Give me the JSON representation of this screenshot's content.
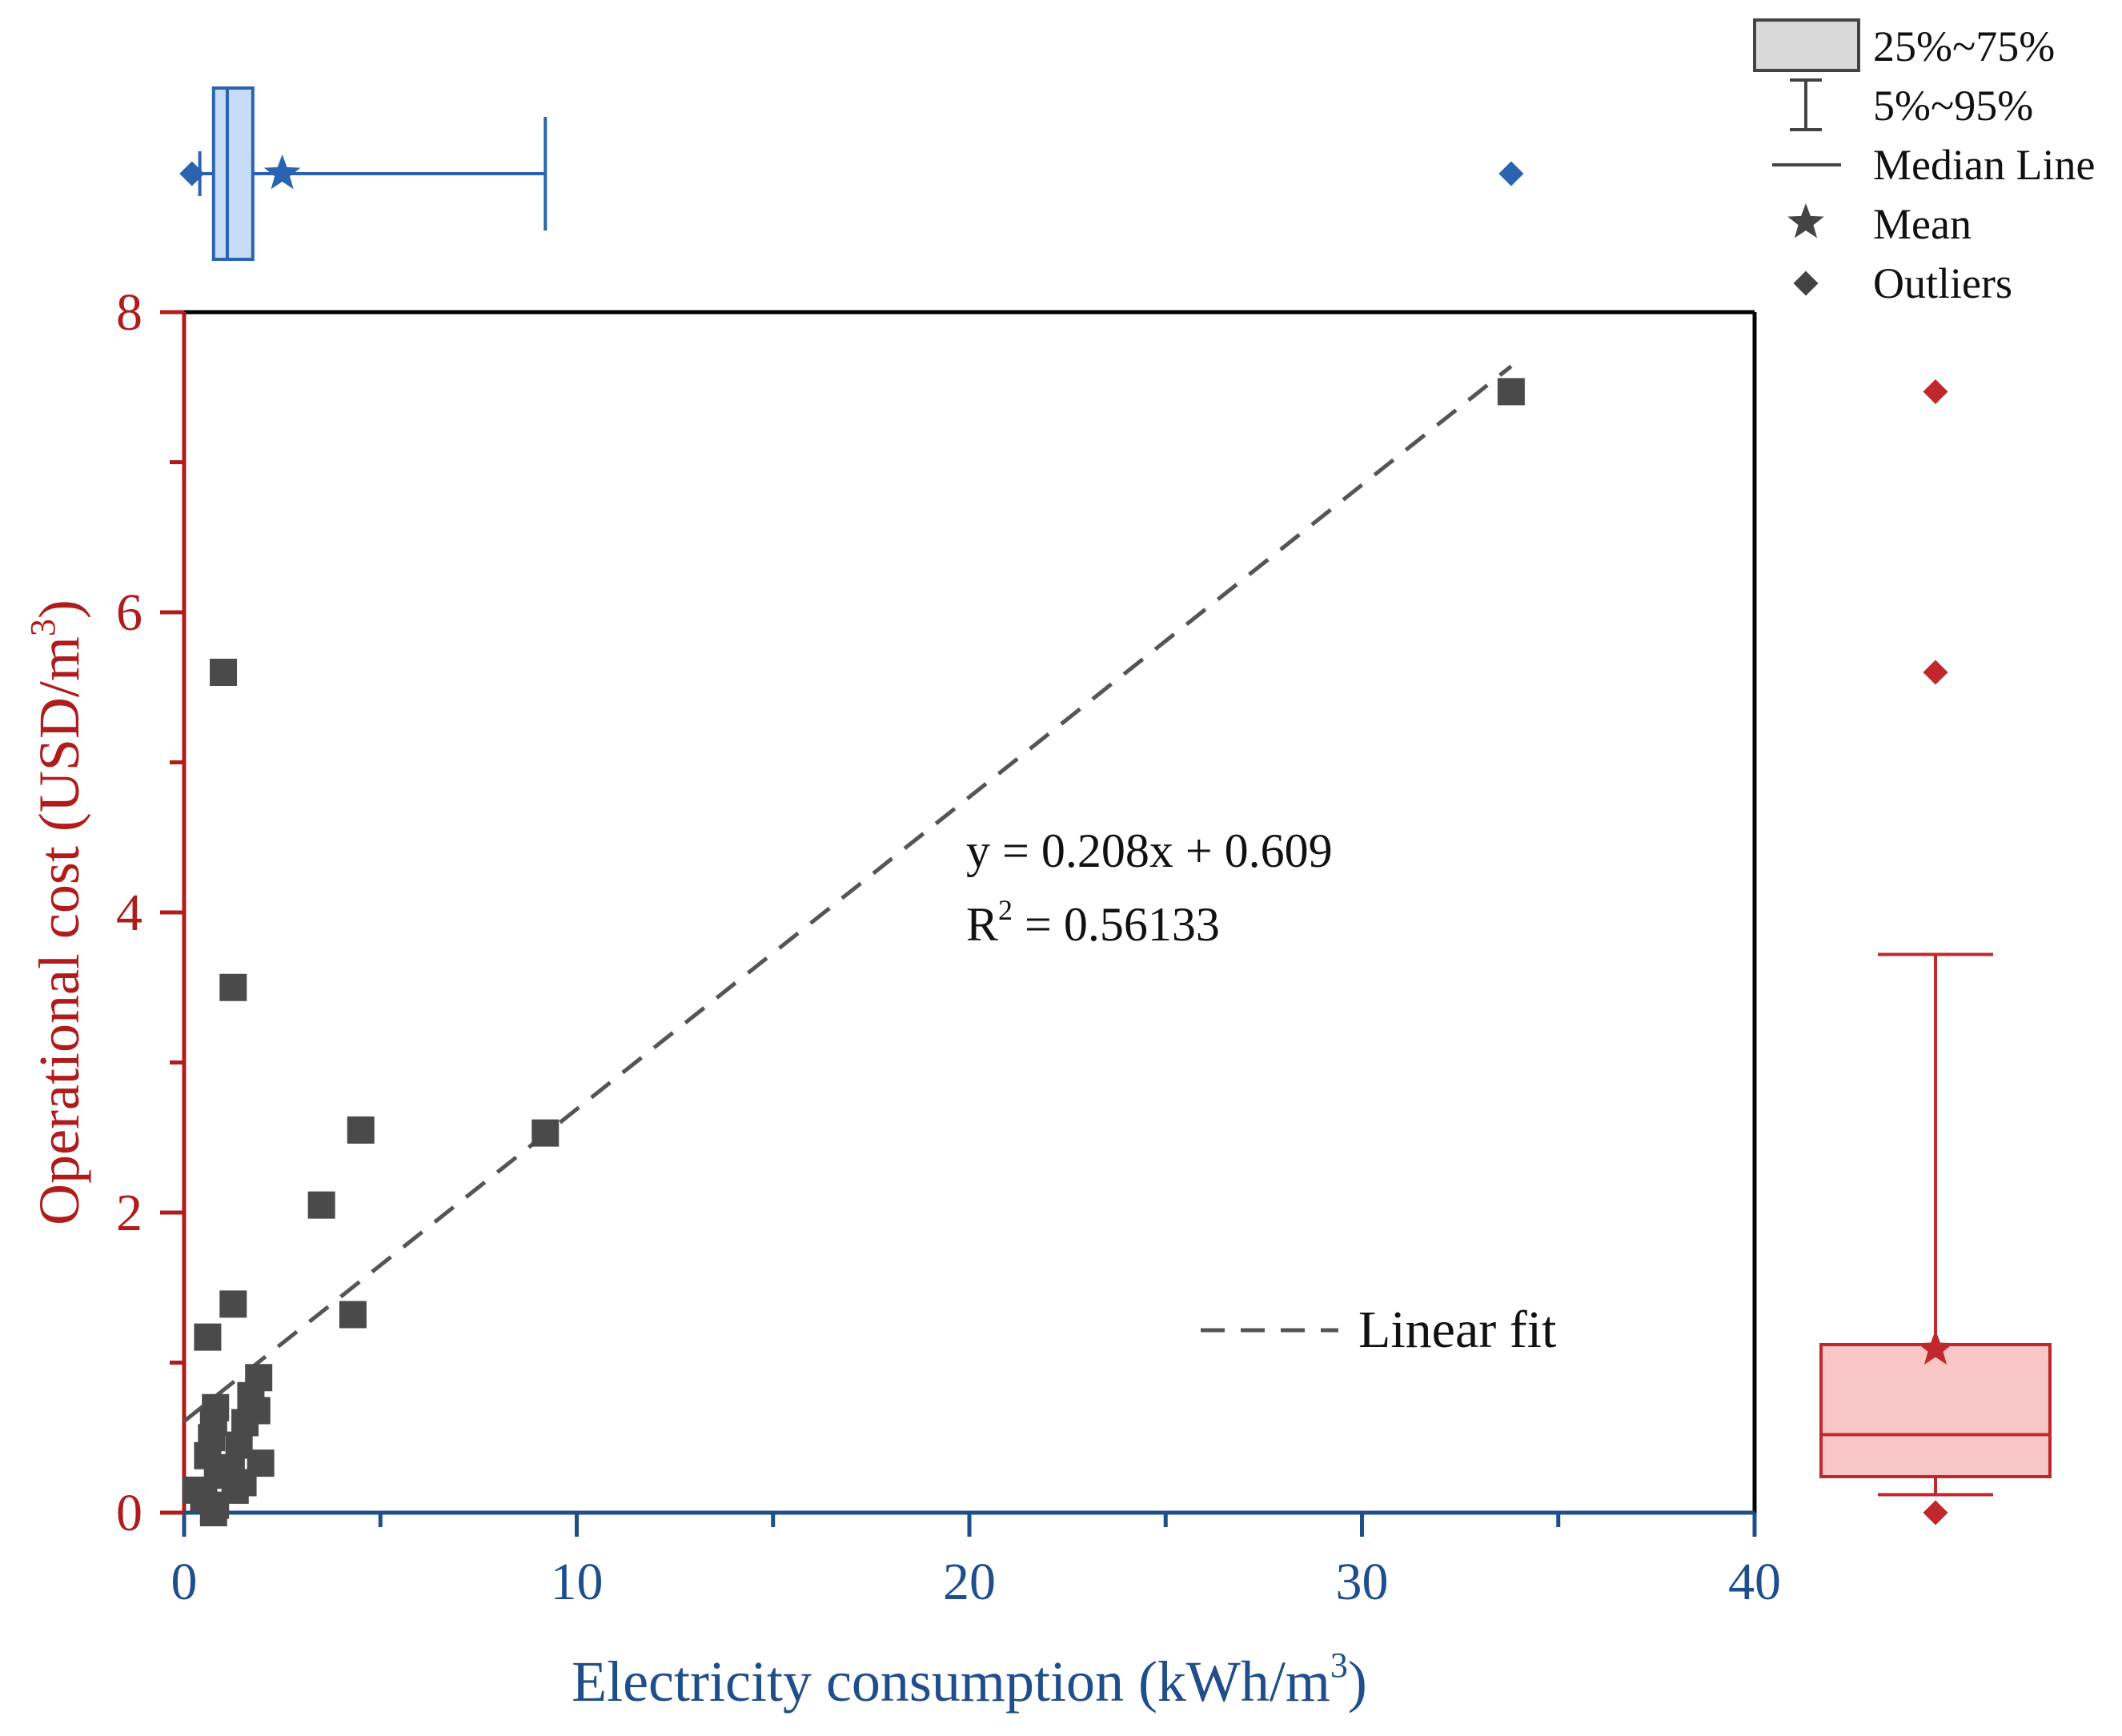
{
  "colors": {
    "x_axis": "#1f4e8c",
    "y_axis": "#b01c1c",
    "points": "#4a4a4a",
    "fit_line": "#555555",
    "x_box_fill": "#c6dcf7",
    "x_box_stroke": "#2a64b0",
    "y_box_fill": "#f8c6c6",
    "y_box_stroke": "#c0282d",
    "legend_box_fill": "#d9d9d9",
    "legend_mark": "#444444"
  },
  "chart_data": {
    "type": "scatter",
    "xlabel": "Electricity consumption (kWh/m",
    "xlabel_sup": "3",
    "xlabel_tail": ")",
    "ylabel": "Operational cost (USD/m",
    "ylabel_sup": "3",
    "ylabel_tail": ")",
    "xlim": [
      0,
      40
    ],
    "ylim": [
      0,
      8
    ],
    "x_ticks": [
      0,
      10,
      20,
      30,
      40
    ],
    "x_tick_labels": [
      "0",
      "10",
      "20",
      "30",
      "40"
    ],
    "x_minor_ticks": [
      5,
      15,
      25,
      35
    ],
    "y_ticks": [
      0,
      2,
      4,
      6,
      8
    ],
    "y_tick_labels": [
      "0",
      "2",
      "4",
      "6",
      "8"
    ],
    "y_minor_ticks": [
      1,
      3,
      5,
      7
    ],
    "points": [
      {
        "x": 33.8,
        "y": 7.47
      },
      {
        "x": 1.0,
        "y": 5.6
      },
      {
        "x": 1.25,
        "y": 3.5
      },
      {
        "x": 4.5,
        "y": 2.55
      },
      {
        "x": 9.2,
        "y": 2.53
      },
      {
        "x": 3.5,
        "y": 2.05
      },
      {
        "x": 4.3,
        "y": 1.32
      },
      {
        "x": 1.25,
        "y": 1.39
      },
      {
        "x": 0.6,
        "y": 1.17
      },
      {
        "x": 1.9,
        "y": 0.9
      },
      {
        "x": 1.7,
        "y": 0.78
      },
      {
        "x": 0.8,
        "y": 0.7
      },
      {
        "x": 0.75,
        "y": 0.6
      },
      {
        "x": 1.85,
        "y": 0.68
      },
      {
        "x": 1.55,
        "y": 0.6
      },
      {
        "x": 0.7,
        "y": 0.5
      },
      {
        "x": 1.4,
        "y": 0.45
      },
      {
        "x": 0.6,
        "y": 0.38
      },
      {
        "x": 1.2,
        "y": 0.3
      },
      {
        "x": 1.95,
        "y": 0.33
      },
      {
        "x": 0.85,
        "y": 0.25
      },
      {
        "x": 1.5,
        "y": 0.2
      },
      {
        "x": 0.3,
        "y": 0.15
      },
      {
        "x": 1.3,
        "y": 0.15
      },
      {
        "x": 0.5,
        "y": 0.1
      },
      {
        "x": 0.8,
        "y": 0.05
      },
      {
        "x": 0.75,
        "y": 0.0
      }
    ],
    "fit": {
      "slope": 0.208,
      "intercept": 0.609,
      "x_range": [
        0,
        33.8
      ],
      "equation": "y = 0.208x + 0.609",
      "r2_prefix": "R",
      "r2_sup": "2",
      "r2_value": " = 0.56133",
      "legend_label": "Linear fit"
    },
    "x_boxplot": {
      "p5": 0.4,
      "q1": 0.75,
      "median": 1.1,
      "q3": 1.75,
      "p95": 9.2,
      "mean": 2.5,
      "outliers": [
        0.2,
        33.8
      ]
    },
    "y_boxplot": {
      "p5": 0.12,
      "q1": 0.24,
      "median": 0.52,
      "q3": 1.12,
      "p95": 3.72,
      "mean": 1.09,
      "outliers": [
        0.0,
        5.6,
        7.47
      ]
    },
    "legend": [
      {
        "key": "box",
        "label": "25%~75%"
      },
      {
        "key": "whisker",
        "label": "5%~95%"
      },
      {
        "key": "median",
        "label": "Median Line"
      },
      {
        "key": "mean",
        "label": "Mean"
      },
      {
        "key": "outliers",
        "label": "Outliers"
      }
    ]
  }
}
